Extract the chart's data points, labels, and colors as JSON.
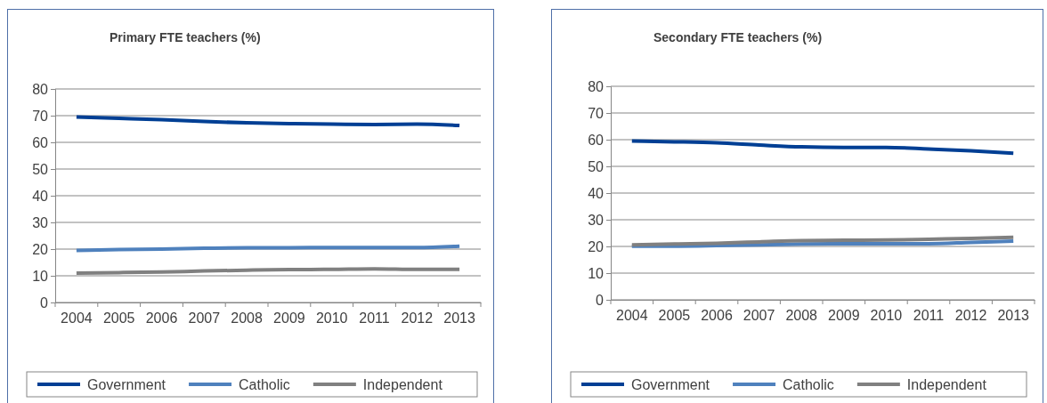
{
  "chart_data": [
    {
      "type": "line",
      "title": "Primary FTE teachers (%)",
      "categories": [
        "2004",
        "2005",
        "2006",
        "2007",
        "2008",
        "2009",
        "2010",
        "2011",
        "2012",
        "2013"
      ],
      "ylim": [
        0,
        80
      ],
      "yticks": [
        0,
        10,
        20,
        30,
        40,
        50,
        60,
        70,
        80
      ],
      "grid": "y",
      "legend": "bottom",
      "marker": "none",
      "line_style": "solid",
      "series": [
        {
          "name": "Government",
          "color": "#003f94",
          "values": [
            69.5,
            69,
            68.5,
            67.8,
            67.3,
            67,
            66.8,
            66.7,
            66.8,
            66.3
          ]
        },
        {
          "name": "Catholic",
          "color": "#4f81bd",
          "values": [
            19.5,
            19.8,
            20,
            20.3,
            20.5,
            20.5,
            20.6,
            20.6,
            20.6,
            21.1
          ]
        },
        {
          "name": "Independent",
          "color": "#808080",
          "values": [
            11,
            11.2,
            11.4,
            11.8,
            12.1,
            12.3,
            12.4,
            12.6,
            12.4,
            12.4
          ]
        }
      ]
    },
    {
      "type": "line",
      "title": "Secondary FTE teachers (%)",
      "categories": [
        "2004",
        "2005",
        "2006",
        "2007",
        "2008",
        "2009",
        "2010",
        "2011",
        "2012",
        "2013"
      ],
      "ylim": [
        0,
        80
      ],
      "yticks": [
        0,
        10,
        20,
        30,
        40,
        50,
        60,
        70,
        80
      ],
      "grid": "y",
      "legend": "bottom",
      "marker": "none",
      "line_style": "solid",
      "series": [
        {
          "name": "Government",
          "color": "#003f94",
          "values": [
            59.5,
            59.2,
            58.8,
            58,
            57.3,
            57.1,
            57.1,
            56.5,
            55.8,
            54.9
          ]
        },
        {
          "name": "Catholic",
          "color": "#4f81bd",
          "values": [
            20.1,
            20.1,
            20.3,
            20.6,
            20.9,
            21,
            21,
            21,
            21.5,
            22
          ]
        },
        {
          "name": "Independent",
          "color": "#808080",
          "values": [
            20.6,
            20.9,
            21.2,
            21.7,
            22.2,
            22.3,
            22.4,
            22.7,
            23,
            23.4
          ]
        }
      ]
    }
  ]
}
